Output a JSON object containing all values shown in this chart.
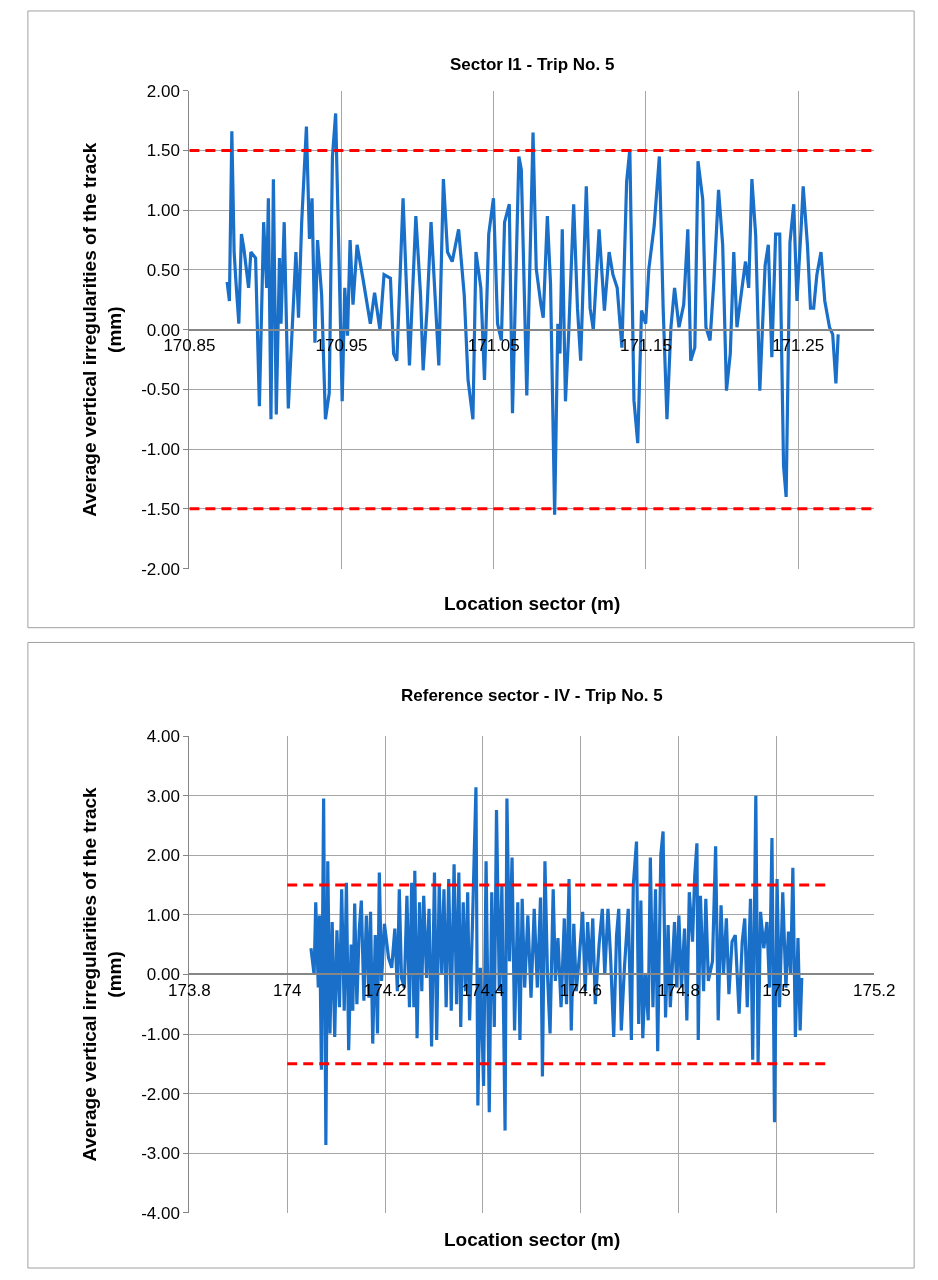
{
  "chart_data": [
    {
      "type": "line",
      "title": "Sector I1 - Trip No. 5",
      "xlabel": "Location sector (m)",
      "ylabel": "Average vertical irregularities of the track (mm)",
      "xlim": [
        170.85,
        171.3
      ],
      "xticks": [
        170.85,
        170.95,
        171.05,
        171.15,
        171.25
      ],
      "ylim": [
        -2,
        2
      ],
      "yticks": [
        {
          "value": -2,
          "label": "-2.00"
        },
        {
          "value": -1.5,
          "label": "-1.50"
        },
        {
          "value": -1,
          "label": "-1.00"
        },
        {
          "value": -0.5,
          "label": "-0.50"
        },
        {
          "value": 0,
          "label": "0.00"
        },
        {
          "value": 0.5,
          "label": "0.50"
        },
        {
          "value": 1,
          "label": "1.00"
        },
        {
          "value": 1.5,
          "label": "1.50"
        },
        {
          "value": 2,
          "label": "2.00"
        }
      ],
      "grid": true,
      "marker": "none",
      "line_style": "solid",
      "series": [
        {
          "color": "#1a70c8",
          "x": [
            170.8748,
            170.8763,
            170.8779,
            170.8794,
            170.8806,
            170.8825,
            170.8842,
            170.8858,
            170.8889,
            170.8904,
            170.8935,
            170.896,
            170.8988,
            170.9008,
            170.9019,
            170.9036,
            170.9052,
            170.9071,
            170.9092,
            170.9102,
            170.9123,
            170.915,
            170.92,
            170.9217,
            170.9238,
            170.9269,
            170.9289,
            170.9306,
            170.9325,
            170.9342,
            170.9369,
            170.9394,
            170.9419,
            170.944,
            170.9461,
            170.9481,
            170.9504,
            170.9521,
            170.9539,
            170.9556,
            170.9575,
            170.9602,
            170.9644,
            170.9689,
            170.9717,
            170.9752,
            170.9779,
            170.9821,
            170.9842,
            170.9863,
            170.9904,
            170.9946,
            170.9988,
            171.0019,
            171.0036,
            171.0061,
            171.0088,
            171.0139,
            171.0169,
            171.0196,
            171.0227,
            171.0269,
            171.0306,
            171.0331,
            171.0363,
            171.0383,
            171.0415,
            171.0439,
            171.0467,
            171.0498,
            171.0525,
            171.055,
            171.0571,
            171.0602,
            171.0623,
            171.0665,
            171.0681,
            171.0717,
            171.0758,
            171.0779,
            171.0811,
            171.0825,
            171.0852,
            171.0873,
            171.09,
            171.0921,
            171.0935,
            171.095,
            171.0971,
            171.0992,
            171.1025,
            171.105,
            171.1071,
            171.1108,
            171.1133,
            171.1154,
            171.1192,
            171.1227,
            171.1258,
            171.1283,
            171.1311,
            171.1342,
            171.1373,
            171.1394,
            171.1421,
            171.1446,
            171.1471,
            171.1498,
            171.1519,
            171.1554,
            171.1588,
            171.1613,
            171.1638,
            171.1664,
            171.1688,
            171.1717,
            171.1748,
            171.1775,
            171.1794,
            171.1821,
            171.1842,
            171.1873,
            171.1894,
            171.1921,
            171.1946,
            171.1977,
            171.2004,
            171.2029,
            171.2054,
            171.2077,
            171.2098,
            171.2123,
            171.2154,
            171.2175,
            171.2196,
            171.2221,
            171.2248,
            171.2283,
            171.2304,
            171.2327,
            171.2352,
            171.2379,
            171.2404,
            171.2421,
            171.2446,
            171.2471,
            171.2492,
            171.2519,
            171.2533,
            171.2561,
            171.2581,
            171.2602,
            171.2623,
            171.265,
            171.2675,
            171.2706,
            171.2727,
            171.2748,
            171.2763
          ],
          "values": [
            0.4,
            0.24,
            1.66,
            0.65,
            0.4,
            0.05,
            0.8,
            0.68,
            0.35,
            0.65,
            0.6,
            -0.64,
            0.9,
            0.35,
            1.1,
            -0.75,
            1.26,
            -0.71,
            0.6,
            0.05,
            0.9,
            -0.66,
            0.65,
            0.1,
            0.9,
            1.7,
            0.76,
            1.1,
            -0.11,
            0.75,
            0.29,
            -0.75,
            -0.53,
            1.45,
            1.81,
            0.71,
            -0.6,
            0.35,
            -0.05,
            0.75,
            0.21,
            0.71,
            0.4,
            0.05,
            0.31,
            0.0,
            0.46,
            0.43,
            -0.2,
            -0.26,
            1.1,
            -0.3,
            0.95,
            0.29,
            -0.34,
            0.16,
            0.9,
            -0.3,
            1.26,
            0.65,
            0.57,
            0.84,
            0.29,
            -0.42,
            -0.75,
            0.65,
            0.35,
            -0.42,
            0.8,
            1.1,
            0.05,
            -0.09,
            0.9,
            1.05,
            -0.7,
            1.45,
            1.34,
            -0.55,
            1.65,
            0.51,
            0.2,
            0.1,
            0.95,
            0.38,
            -1.55,
            0.05,
            -0.2,
            0.84,
            -0.6,
            -0.04,
            1.05,
            0.18,
            -0.26,
            1.2,
            0.18,
            0.0,
            0.84,
            0.16,
            0.65,
            0.46,
            0.35,
            -0.15,
            1.24,
            1.51,
            -0.59,
            -0.95,
            0.16,
            0.05,
            0.51,
            0.87,
            1.45,
            0.18,
            -0.75,
            0.02,
            0.35,
            0.02,
            0.21,
            0.84,
            -0.26,
            -0.15,
            1.41,
            1.09,
            0.02,
            -0.09,
            0.4,
            1.17,
            0.71,
            -0.51,
            -0.2,
            0.65,
            0.02,
            0.27,
            0.57,
            0.35,
            1.26,
            0.79,
            -0.51,
            0.54,
            0.71,
            -0.23,
            0.8,
            0.8,
            -1.14,
            -1.4,
            0.73,
            1.05,
            0.24,
            0.84,
            1.2,
            0.71,
            0.18,
            0.18,
            0.46,
            0.65,
            0.24,
            0.02,
            -0.04,
            -0.45,
            -0.04
          ]
        },
        {
          "color": "#ff0000",
          "line_style": "dashed",
          "x": [
            170.85,
            171.3
          ],
          "values": [
            1.5,
            1.5
          ]
        },
        {
          "color": "#ff0000",
          "line_style": "dashed",
          "x": [
            170.85,
            171.3
          ],
          "values": [
            -1.5,
            -1.5
          ]
        }
      ]
    },
    {
      "type": "line",
      "title": "Reference sector - IV - Trip No. 5",
      "xlabel": "Location sector (m)",
      "ylabel": "Average vertical irregularities of the track (mm)",
      "xlim": [
        173.8,
        175.2
      ],
      "xticks": [
        173.8,
        174,
        174.2,
        174.4,
        174.6,
        174.8,
        175,
        175.2
      ],
      "ylim": [
        -4,
        4
      ],
      "yticks": [
        {
          "value": -4,
          "label": "-4.00"
        },
        {
          "value": -3,
          "label": "-3.00"
        },
        {
          "value": -2,
          "label": "-2.00"
        },
        {
          "value": -1,
          "label": "-1.00"
        },
        {
          "value": 0,
          "label": "0.00"
        },
        {
          "value": 1,
          "label": "1.00"
        },
        {
          "value": 2,
          "label": "2.00"
        },
        {
          "value": 3,
          "label": "3.00"
        },
        {
          "value": 4,
          "label": "4.00"
        }
      ],
      "grid": true,
      "marker": "none",
      "line_style": "solid",
      "series": [
        {
          "color": "#1a70c8",
          "x": [
            174.0485,
            174.055,
            174.0583,
            174.0635,
            174.066,
            174.0699,
            174.0744,
            174.079,
            174.0829,
            174.0874,
            174.0919,
            174.0971,
            174.1016,
            174.1068,
            174.1113,
            174.1165,
            174.121,
            174.1256,
            174.1307,
            174.134,
            174.1379,
            174.1424,
            174.147,
            174.1515,
            174.1567,
            174.1618,
            174.167,
            174.1703,
            174.1748,
            174.18,
            174.1845,
            174.1883,
            174.1928,
            174.1987,
            174.2071,
            174.2136,
            174.22,
            174.2252,
            174.2291,
            174.2336,
            174.2394,
            174.2447,
            174.2499,
            174.2544,
            174.2589,
            174.2608,
            174.2654,
            174.2705,
            174.2751,
            174.279,
            174.2848,
            174.2899,
            174.2951,
            174.301,
            174.3055,
            174.3107,
            174.3159,
            174.3204,
            174.3249,
            174.3301,
            174.3353,
            174.3411,
            174.3462,
            174.3508,
            174.3547,
            174.3598,
            174.3644,
            174.3689,
            174.3728,
            174.3786,
            174.3858,
            174.3897,
            174.3948,
            174.4014,
            174.4065,
            174.413,
            174.4181,
            174.4233,
            174.4278,
            174.4336,
            174.4388,
            174.4453,
            174.4491,
            174.4544,
            174.4596,
            174.4647,
            174.4713,
            174.4757,
            174.4803,
            174.4854,
            174.4919,
            174.4984,
            174.5049,
            174.5113,
            174.5178,
            174.5217,
            174.5268,
            174.532,
            174.5373,
            174.5437,
            174.5482,
            174.5534,
            174.5598,
            174.5664,
            174.5709,
            174.5761,
            174.5806,
            174.5858,
            174.5909,
            174.5975,
            174.6039,
            174.6091,
            174.6142,
            174.6194,
            174.6246,
            174.6297,
            174.6375,
            174.6441,
            174.6491,
            174.6557,
            174.6608,
            174.6674,
            174.6732,
            174.6777,
            174.6829,
            174.6893,
            174.6971,
            174.7035,
            174.7074,
            174.714,
            174.7184,
            174.7229,
            174.7268,
            174.732,
            174.7379,
            174.7423,
            174.7476,
            174.7528,
            174.7573,
            174.7637,
            174.7683,
            174.7734,
            174.7786,
            174.7831,
            174.7917,
            174.7961,
            174.8006,
            174.8058,
            174.8122,
            174.8169,
            174.8219,
            174.8285,
            174.833,
            174.8375,
            174.8402,
            174.8447,
            174.8511,
            174.8557,
            174.8608,
            174.8693,
            174.8757,
            174.881,
            174.8868,
            174.8918,
            174.8977,
            174.9029,
            174.9093,
            174.9159,
            174.9237,
            174.9301,
            174.9353,
            174.9404,
            174.947,
            174.9515,
            174.9579,
            174.9625,
            174.9676,
            174.9742,
            174.9806,
            174.9858,
            174.9909,
            174.9961,
            175.0013,
            175.0064,
            175.013,
            175.0194,
            175.0246,
            175.0291,
            175.0336,
            175.0388,
            175.0441,
            175.0485,
            175.0518
          ],
          "values": [
            0.44,
            0.0,
            1.21,
            -0.22,
            0.99,
            -1.6,
            2.95,
            -2.86,
            1.9,
            -0.99,
            0.88,
            -1.05,
            0.74,
            -0.55,
            1.43,
            -0.61,
            1.54,
            -1.27,
            0.5,
            -0.61,
            1.19,
            -0.5,
            0.72,
            1.24,
            -0.44,
            0.99,
            -0.39,
            1.05,
            -1.16,
            0.66,
            -0.99,
            1.71,
            -0.11,
            0.85,
            0.28,
            0.11,
            0.77,
            -0.28,
            1.43,
            -0.06,
            -0.22,
            1.32,
            -0.55,
            1.54,
            -0.55,
            1.74,
            -1.07,
            1.21,
            -0.28,
            1.32,
            -0.06,
            1.1,
            -1.21,
            1.71,
            -1.1,
            1.49,
            0.0,
            1.43,
            -0.55,
            1.6,
            -0.61,
            1.85,
            -0.5,
            1.71,
            -0.88,
            1.21,
            -0.28,
            1.38,
            -0.77,
            0.83,
            3.14,
            -2.2,
            0.11,
            -1.87,
            1.9,
            -2.31,
            1.38,
            -0.88,
            2.76,
            -0.28,
            1.49,
            -2.62,
            2.95,
            0.22,
            1.96,
            -0.94,
            1.21,
            -1.1,
            1.27,
            -0.22,
            0.99,
            -0.39,
            1.1,
            -0.22,
            1.29,
            -1.71,
            1.9,
            0.0,
            -0.99,
            1.43,
            -0.11,
            0.61,
            -0.55,
            0.94,
            -0.5,
            1.6,
            -0.94,
            0.85,
            -0.28,
            0.33,
            1.05,
            -0.28,
            0.88,
            0.0,
            0.94,
            -0.5,
            0.5,
            1.1,
            0.0,
            1.1,
            0.33,
            -1.05,
            0.66,
            1.1,
            -0.94,
            0.11,
            1.1,
            -1.1,
            1.49,
            2.23,
            -0.83,
            1.24,
            -1.07,
            0.0,
            -0.77,
            1.96,
            -0.55,
            1.43,
            -1.29,
            2.01,
            2.4,
            -0.72,
            0.83,
            -0.55,
            0.88,
            -0.22,
            0.99,
            -0.22,
            0.77,
            -0.77,
            1.38,
            0.55,
            1.65,
            2.2,
            -1.1,
            1.32,
            -0.28,
            1.27,
            -0.11,
            0.22,
            2.15,
            -0.77,
            1.16,
            0.0,
            0.94,
            -0.33,
            0.55,
            0.66,
            -0.66,
            0.55,
            0.94,
            -0.55,
            1.27,
            -1.43,
            3.0,
            -1.49,
            1.05,
            0.44,
            0.88,
            -0.22,
            2.29,
            -2.48,
            1.6,
            -0.55,
            1.38,
            -0.22,
            0.72,
            0.0,
            1.79,
            -1.05,
            0.61,
            -0.94,
            -0.06
          ]
        },
        {
          "color": "#ff0000",
          "line_style": "dashed",
          "x": [
            174.0,
            175.1
          ],
          "values": [
            1.5,
            1.5
          ]
        },
        {
          "color": "#ff0000",
          "line_style": "dashed",
          "x": [
            174.0,
            175.1
          ],
          "values": [
            -1.5,
            -1.5
          ]
        }
      ]
    }
  ]
}
